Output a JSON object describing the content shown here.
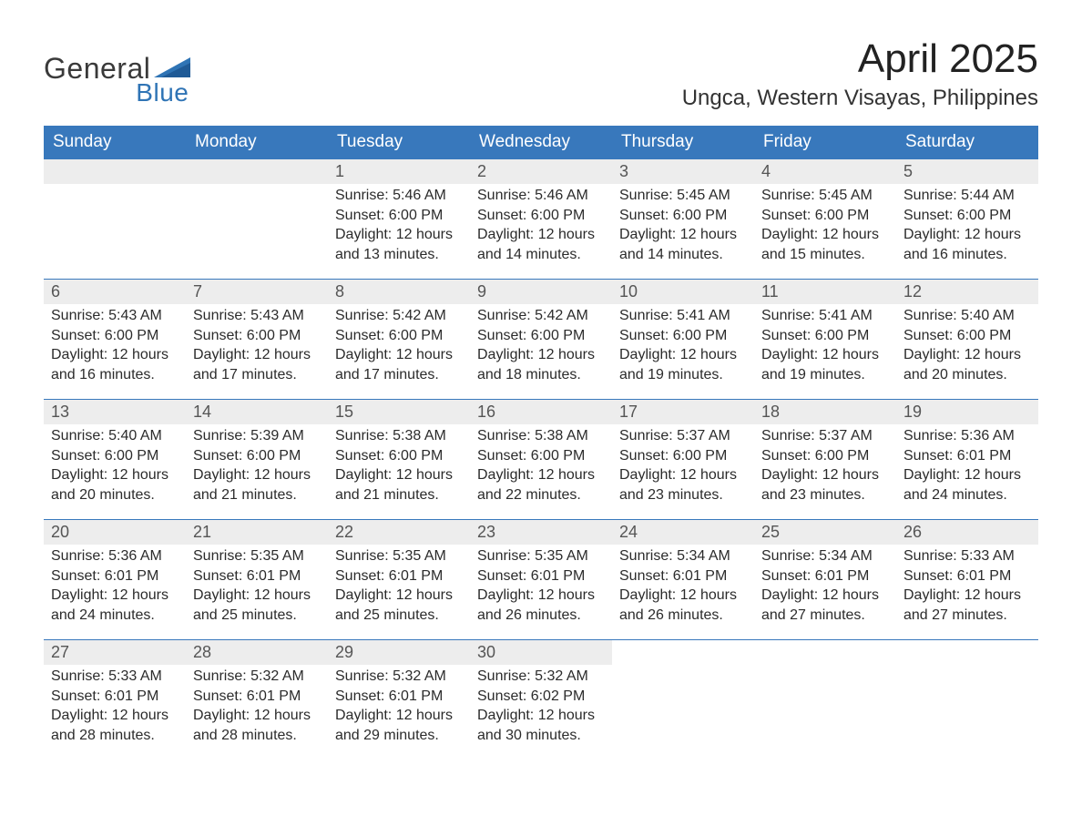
{
  "logo": {
    "text_general": "General",
    "text_blue": "Blue",
    "general_color": "#3a3a3a",
    "blue_color": "#2f74b5",
    "flag_color": "#2f74b5"
  },
  "title": {
    "month": "April 2025",
    "location": "Ungca, Western Visayas, Philippines"
  },
  "styling": {
    "header_bg": "#3878bc",
    "header_text": "#ffffff",
    "row_separator_color": "#3878bc",
    "daynum_bg": "#ededed",
    "daynum_color": "#555555",
    "body_text_color": "#2b2b2b",
    "page_bg": "#ffffff",
    "header_fontsize": 19,
    "title_fontsize": 44,
    "location_fontsize": 24,
    "cell_fontsize": 16
  },
  "calendar": {
    "columns": [
      "Sunday",
      "Monday",
      "Tuesday",
      "Wednesday",
      "Thursday",
      "Friday",
      "Saturday"
    ],
    "first_weekday_index": 2,
    "days": [
      {
        "n": 1,
        "sunrise": "5:46 AM",
        "sunset": "6:00 PM",
        "daylight": "12 hours and 13 minutes."
      },
      {
        "n": 2,
        "sunrise": "5:46 AM",
        "sunset": "6:00 PM",
        "daylight": "12 hours and 14 minutes."
      },
      {
        "n": 3,
        "sunrise": "5:45 AM",
        "sunset": "6:00 PM",
        "daylight": "12 hours and 14 minutes."
      },
      {
        "n": 4,
        "sunrise": "5:45 AM",
        "sunset": "6:00 PM",
        "daylight": "12 hours and 15 minutes."
      },
      {
        "n": 5,
        "sunrise": "5:44 AM",
        "sunset": "6:00 PM",
        "daylight": "12 hours and 16 minutes."
      },
      {
        "n": 6,
        "sunrise": "5:43 AM",
        "sunset": "6:00 PM",
        "daylight": "12 hours and 16 minutes."
      },
      {
        "n": 7,
        "sunrise": "5:43 AM",
        "sunset": "6:00 PM",
        "daylight": "12 hours and 17 minutes."
      },
      {
        "n": 8,
        "sunrise": "5:42 AM",
        "sunset": "6:00 PM",
        "daylight": "12 hours and 17 minutes."
      },
      {
        "n": 9,
        "sunrise": "5:42 AM",
        "sunset": "6:00 PM",
        "daylight": "12 hours and 18 minutes."
      },
      {
        "n": 10,
        "sunrise": "5:41 AM",
        "sunset": "6:00 PM",
        "daylight": "12 hours and 19 minutes."
      },
      {
        "n": 11,
        "sunrise": "5:41 AM",
        "sunset": "6:00 PM",
        "daylight": "12 hours and 19 minutes."
      },
      {
        "n": 12,
        "sunrise": "5:40 AM",
        "sunset": "6:00 PM",
        "daylight": "12 hours and 20 minutes."
      },
      {
        "n": 13,
        "sunrise": "5:40 AM",
        "sunset": "6:00 PM",
        "daylight": "12 hours and 20 minutes."
      },
      {
        "n": 14,
        "sunrise": "5:39 AM",
        "sunset": "6:00 PM",
        "daylight": "12 hours and 21 minutes."
      },
      {
        "n": 15,
        "sunrise": "5:38 AM",
        "sunset": "6:00 PM",
        "daylight": "12 hours and 21 minutes."
      },
      {
        "n": 16,
        "sunrise": "5:38 AM",
        "sunset": "6:00 PM",
        "daylight": "12 hours and 22 minutes."
      },
      {
        "n": 17,
        "sunrise": "5:37 AM",
        "sunset": "6:00 PM",
        "daylight": "12 hours and 23 minutes."
      },
      {
        "n": 18,
        "sunrise": "5:37 AM",
        "sunset": "6:00 PM",
        "daylight": "12 hours and 23 minutes."
      },
      {
        "n": 19,
        "sunrise": "5:36 AM",
        "sunset": "6:01 PM",
        "daylight": "12 hours and 24 minutes."
      },
      {
        "n": 20,
        "sunrise": "5:36 AM",
        "sunset": "6:01 PM",
        "daylight": "12 hours and 24 minutes."
      },
      {
        "n": 21,
        "sunrise": "5:35 AM",
        "sunset": "6:01 PM",
        "daylight": "12 hours and 25 minutes."
      },
      {
        "n": 22,
        "sunrise": "5:35 AM",
        "sunset": "6:01 PM",
        "daylight": "12 hours and 25 minutes."
      },
      {
        "n": 23,
        "sunrise": "5:35 AM",
        "sunset": "6:01 PM",
        "daylight": "12 hours and 26 minutes."
      },
      {
        "n": 24,
        "sunrise": "5:34 AM",
        "sunset": "6:01 PM",
        "daylight": "12 hours and 26 minutes."
      },
      {
        "n": 25,
        "sunrise": "5:34 AM",
        "sunset": "6:01 PM",
        "daylight": "12 hours and 27 minutes."
      },
      {
        "n": 26,
        "sunrise": "5:33 AM",
        "sunset": "6:01 PM",
        "daylight": "12 hours and 27 minutes."
      },
      {
        "n": 27,
        "sunrise": "5:33 AM",
        "sunset": "6:01 PM",
        "daylight": "12 hours and 28 minutes."
      },
      {
        "n": 28,
        "sunrise": "5:32 AM",
        "sunset": "6:01 PM",
        "daylight": "12 hours and 28 minutes."
      },
      {
        "n": 29,
        "sunrise": "5:32 AM",
        "sunset": "6:01 PM",
        "daylight": "12 hours and 29 minutes."
      },
      {
        "n": 30,
        "sunrise": "5:32 AM",
        "sunset": "6:02 PM",
        "daylight": "12 hours and 30 minutes."
      }
    ],
    "labels": {
      "sunrise": "Sunrise:",
      "sunset": "Sunset:",
      "daylight": "Daylight:"
    }
  }
}
